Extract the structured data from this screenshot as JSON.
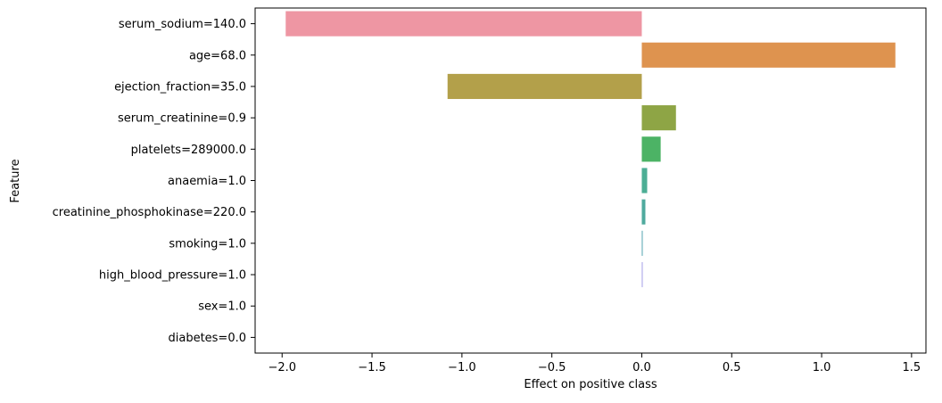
{
  "chart_data": {
    "type": "bar",
    "orientation": "horizontal",
    "title": "",
    "xlabel": "Effect on positive class",
    "ylabel": "Feature",
    "xlim": [
      -2.15,
      1.58
    ],
    "xticks": [
      -2.0,
      -1.5,
      -1.0,
      -0.5,
      0.0,
      0.5,
      1.0,
      1.5
    ],
    "xtick_labels": [
      "−2.0",
      "−1.5",
      "−1.0",
      "−0.5",
      "0.0",
      "0.5",
      "1.0",
      "1.5"
    ],
    "grid": false,
    "legend": "none",
    "categories": [
      "serum_sodium=140.0",
      "age=68.0",
      "ejection_fraction=35.0",
      "serum_creatinine=0.9",
      "platelets=289000.0",
      "anaemia=1.0",
      "creatinine_phosphokinase=220.0",
      "smoking=1.0",
      "high_blood_pressure=1.0",
      "sex=1.0",
      "diabetes=0.0"
    ],
    "values": [
      -1.98,
      1.41,
      -1.08,
      0.19,
      0.105,
      0.03,
      0.02,
      0.005,
      0.003,
      0.0,
      0.0
    ],
    "colors": [
      "#ee96a3",
      "#de934f",
      "#b3a04a",
      "#8ea545",
      "#4cb365",
      "#4cae95",
      "#4faa9e",
      "#54a5b1",
      "#a39de8",
      "#e28fd9",
      "#ed91bd"
    ]
  }
}
